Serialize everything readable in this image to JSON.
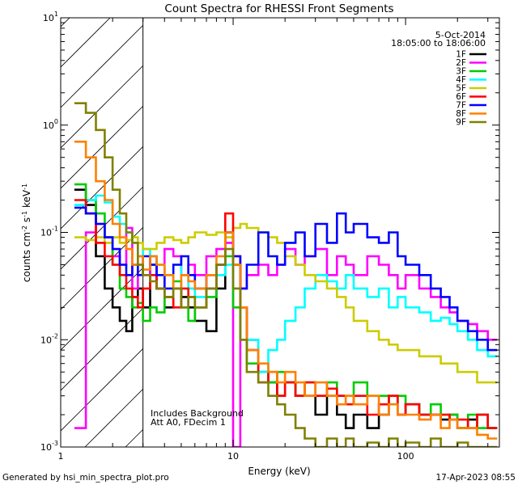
{
  "chart_data": {
    "type": "line",
    "title": "Count Spectra for RHESSI Front Segments",
    "xlabel": "Energy (keV)",
    "ylabel_parts": [
      "counts cm",
      "-2",
      " s",
      "-1",
      " keV",
      "-1"
    ],
    "xscale": "log",
    "yscale": "log",
    "xlim": [
      1,
      350
    ],
    "ylim": [
      0.001,
      10
    ],
    "x_ticks": [
      {
        "value": 1,
        "label": "1"
      },
      {
        "value": 10,
        "label": "10"
      },
      {
        "value": 100,
        "label": "100"
      }
    ],
    "y_ticks": [
      {
        "value": 0.001,
        "mantissa": "10",
        "exp": "-3"
      },
      {
        "value": 0.01,
        "mantissa": "10",
        "exp": "-2"
      },
      {
        "value": 0.1,
        "mantissa": "10",
        "exp": "-1"
      },
      {
        "value": 1,
        "mantissa": "10",
        "exp": "0"
      },
      {
        "value": 10,
        "mantissa": "10",
        "exp": "1"
      }
    ],
    "hatched_region_upper_kev": 3.0,
    "date": "5-Oct-2014",
    "time_range": "18:05:00 to 18:06:00",
    "legend_placement": "top-right",
    "annotations": [
      "Includes Background",
      "Att A0, FDecim 1"
    ],
    "energy_bin_edges": [
      1.2,
      1.4,
      1.6,
      1.8,
      2.0,
      2.2,
      2.4,
      2.6,
      2.8,
      3.0,
      3.3,
      3.6,
      4.0,
      4.5,
      5.0,
      5.5,
      6.0,
      7.0,
      8.0,
      9.0,
      10.0,
      11.0,
      12.0,
      14.0,
      16.0,
      18.0,
      20.0,
      23.0,
      26.0,
      30.0,
      35.0,
      40.0,
      45.0,
      50.0,
      60.0,
      70.0,
      80.0,
      90.0,
      100.0,
      120.0,
      140.0,
      160.0,
      180.0,
      200.0,
      230.0,
      260.0,
      300.0,
      340.0
    ],
    "series": [
      {
        "name": "1F",
        "color": "#000000",
        "values": [
          0.25,
          0.18,
          0.06,
          0.03,
          0.02,
          0.015,
          0.012,
          0.025,
          0.03,
          0.02,
          0.05,
          0.03,
          0.02,
          0.03,
          0.025,
          0.02,
          0.015,
          0.012,
          0.03,
          0.1,
          0.05,
          0.02,
          0.01,
          0.005,
          0.004,
          0.003,
          0.004,
          0.003,
          0.003,
          0.002,
          0.003,
          0.002,
          0.0015,
          0.002,
          0.0015,
          0.002,
          0.003,
          0.002,
          0.0025,
          0.002,
          0.002,
          0.0018,
          0.002,
          0.0015,
          0.0018,
          0.002,
          0.0015
        ]
      },
      {
        "name": "2F",
        "color": "#ff00ff",
        "values": [
          0.0015,
          0.1,
          0.12,
          0.09,
          0.06,
          0.05,
          0.11,
          0.03,
          0.05,
          0.04,
          0.06,
          0.03,
          0.07,
          0.06,
          0.04,
          0.05,
          0.04,
          0.06,
          0.07,
          0.08,
          0.001,
          0.03,
          0.04,
          0.05,
          0.04,
          0.05,
          0.07,
          0.05,
          0.06,
          0.07,
          0.04,
          0.06,
          0.05,
          0.04,
          0.06,
          0.05,
          0.04,
          0.03,
          0.04,
          0.03,
          0.025,
          0.02,
          0.018,
          0.015,
          0.014,
          0.012,
          0.01
        ]
      },
      {
        "name": "3F",
        "color": "#00cc00",
        "values": [
          0.28,
          0.2,
          0.15,
          0.09,
          0.05,
          0.03,
          0.025,
          0.02,
          0.022,
          0.015,
          0.02,
          0.018,
          0.025,
          0.035,
          0.02,
          0.015,
          0.02,
          0.025,
          0.04,
          0.06,
          0.02,
          0.01,
          0.006,
          0.005,
          0.004,
          0.005,
          0.004,
          0.003,
          0.004,
          0.003,
          0.004,
          0.003,
          0.003,
          0.004,
          0.003,
          0.003,
          0.0025,
          0.003,
          0.0025,
          0.002,
          0.0025,
          0.002,
          0.002,
          0.0015,
          0.002,
          0.0015,
          0.0015
        ]
      },
      {
        "name": "4F",
        "color": "#00ffff",
        "values": [
          0.18,
          0.2,
          0.22,
          0.19,
          0.14,
          0.12,
          0.1,
          0.08,
          0.06,
          0.07,
          0.06,
          0.05,
          0.04,
          0.05,
          0.04,
          0.03,
          0.025,
          0.03,
          0.04,
          0.05,
          0.03,
          0.02,
          0.01,
          0.005,
          0.008,
          0.01,
          0.015,
          0.02,
          0.03,
          0.04,
          0.035,
          0.03,
          0.04,
          0.03,
          0.025,
          0.03,
          0.02,
          0.025,
          0.02,
          0.018,
          0.015,
          0.016,
          0.014,
          0.012,
          0.01,
          0.008,
          0.007
        ]
      },
      {
        "name": "5F",
        "color": "#cccc00",
        "values": [
          0.09,
          0.085,
          0.09,
          0.08,
          0.09,
          0.08,
          0.085,
          0.09,
          0.08,
          0.07,
          0.07,
          0.08,
          0.09,
          0.085,
          0.08,
          0.09,
          0.1,
          0.095,
          0.1,
          0.09,
          0.11,
          0.12,
          0.11,
          0.1,
          0.09,
          0.08,
          0.06,
          0.05,
          0.04,
          0.035,
          0.03,
          0.025,
          0.02,
          0.015,
          0.012,
          0.01,
          0.009,
          0.008,
          0.008,
          0.007,
          0.007,
          0.006,
          0.006,
          0.005,
          0.005,
          0.004,
          0.004
        ]
      },
      {
        "name": "6F",
        "color": "#ff0000",
        "values": [
          0.2,
          0.15,
          0.08,
          0.06,
          0.05,
          0.04,
          0.03,
          0.025,
          0.02,
          0.03,
          0.04,
          0.03,
          0.025,
          0.02,
          0.03,
          0.025,
          0.02,
          0.03,
          0.05,
          0.15,
          0.06,
          0.02,
          0.008,
          0.004,
          0.005,
          0.003,
          0.004,
          0.003,
          0.004,
          0.003,
          0.0035,
          0.003,
          0.0025,
          0.003,
          0.002,
          0.0025,
          0.003,
          0.002,
          0.0025,
          0.002,
          0.002,
          0.002,
          0.0018,
          0.0018,
          0.0015,
          0.002,
          0.0015
        ]
      },
      {
        "name": "7F",
        "color": "#0000ff",
        "values": [
          0.17,
          0.15,
          0.12,
          0.09,
          0.07,
          0.05,
          0.04,
          0.05,
          0.04,
          0.06,
          0.05,
          0.04,
          0.03,
          0.05,
          0.06,
          0.04,
          0.03,
          0.04,
          0.05,
          0.1,
          0.06,
          0.03,
          0.05,
          0.1,
          0.06,
          0.05,
          0.08,
          0.1,
          0.06,
          0.12,
          0.08,
          0.15,
          0.1,
          0.12,
          0.09,
          0.08,
          0.1,
          0.06,
          0.05,
          0.04,
          0.03,
          0.025,
          0.02,
          0.015,
          0.012,
          0.01,
          0.008
        ]
      },
      {
        "name": "8F",
        "color": "#ff8000",
        "values": [
          0.7,
          0.5,
          0.3,
          0.2,
          0.12,
          0.09,
          0.07,
          0.05,
          0.06,
          0.045,
          0.06,
          0.05,
          0.04,
          0.03,
          0.04,
          0.035,
          0.03,
          0.04,
          0.06,
          0.1,
          0.05,
          0.02,
          0.008,
          0.006,
          0.005,
          0.004,
          0.005,
          0.004,
          0.003,
          0.004,
          0.003,
          0.0025,
          0.003,
          0.0025,
          0.003,
          0.002,
          0.0025,
          0.002,
          0.002,
          0.0018,
          0.002,
          0.0015,
          0.0018,
          0.0015,
          0.0015,
          0.0013,
          0.0012
        ]
      },
      {
        "name": "9F",
        "color": "#808000",
        "values": [
          1.6,
          1.3,
          0.9,
          0.5,
          0.25,
          0.15,
          0.1,
          0.08,
          0.05,
          0.04,
          0.035,
          0.03,
          0.025,
          0.03,
          0.02,
          0.025,
          0.02,
          0.03,
          0.05,
          0.07,
          0.03,
          0.01,
          0.005,
          0.004,
          0.003,
          0.0025,
          0.002,
          0.0015,
          0.0012,
          0.001,
          0.0012,
          0.001,
          0.0012,
          0.001,
          0.0011,
          0.001,
          0.0012,
          0.001,
          0.0011,
          0.001,
          0.0012,
          0.001,
          0.001,
          0.0011,
          0.001,
          0.001,
          0.001
        ]
      }
    ]
  },
  "footer": {
    "generated_by": "Generated by hsi_min_spectra_plot.pro",
    "timestamp": "17-Apr-2023 08:55"
  }
}
